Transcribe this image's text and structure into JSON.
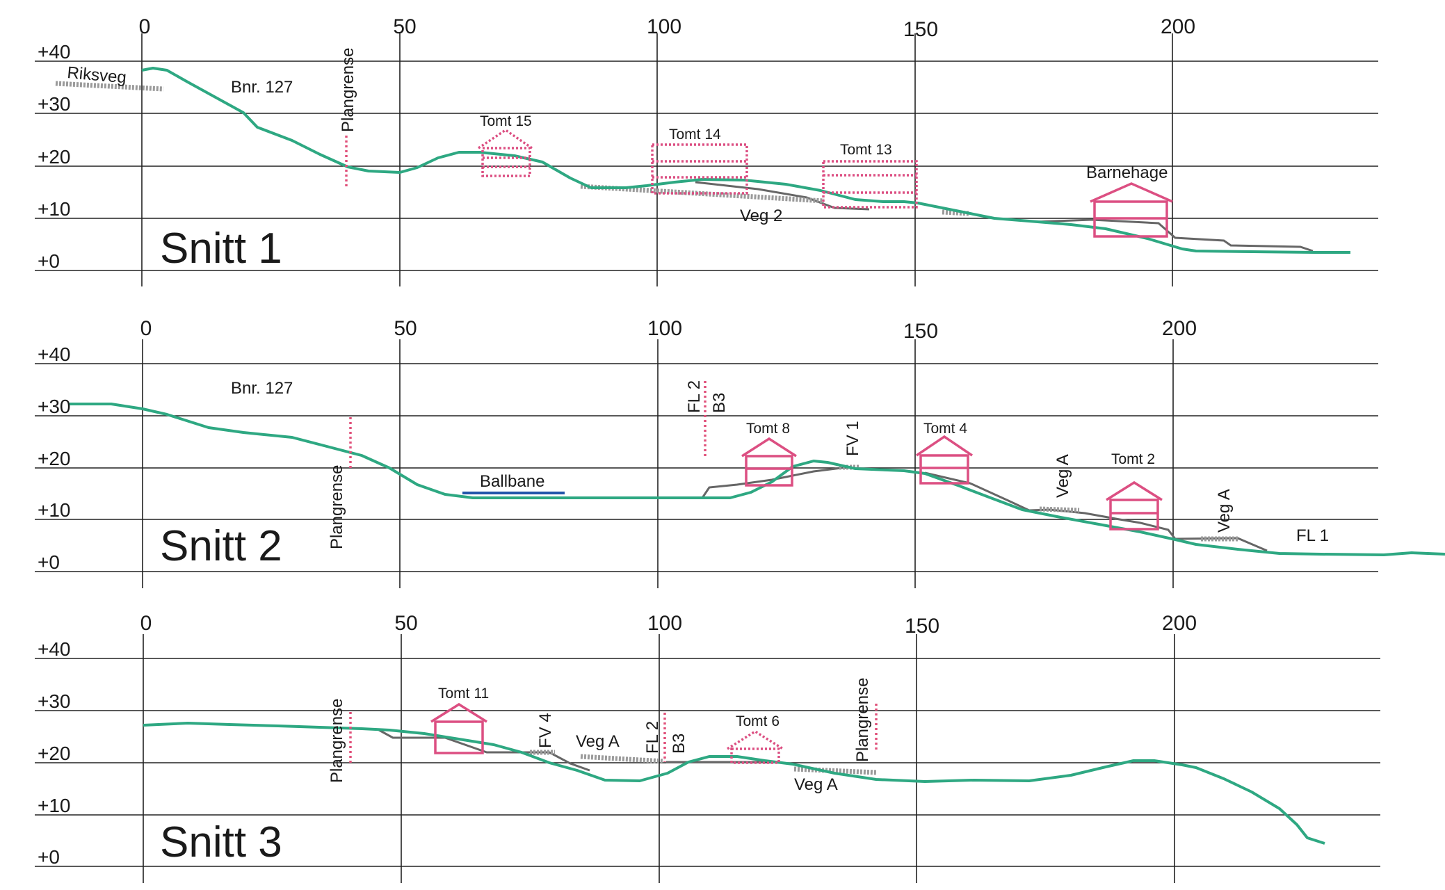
{
  "axis": {
    "x_ticks": [
      "0",
      "50",
      "100",
      "150",
      "200"
    ],
    "elevation_ticks": [
      "+40",
      "+30",
      "+20",
      "+10",
      "+0"
    ]
  },
  "colors": {
    "terrain": "#2ea882",
    "building": "#dc4f82",
    "boundary": "#e0507a",
    "road": "#666666",
    "ballbane": "#2255aa"
  },
  "sections": [
    {
      "title": "Snitt 1",
      "labels": {
        "riksveg": "Riksveg",
        "bnr": "Bnr. 127",
        "plangrense": "Plangrense",
        "tomt15": "Tomt 15",
        "tomt14": "Tomt 14",
        "tomt13": "Tomt 13",
        "barnehage": "Barnehage",
        "veg2": "Veg 2"
      }
    },
    {
      "title": "Snitt 2",
      "labels": {
        "bnr": "Bnr. 127",
        "plangrense": "Plangrense",
        "ballbane": "Ballbane",
        "fl2": "FL 2",
        "b3": "B3",
        "tomt8": "Tomt 8",
        "fv1": "FV 1",
        "tomt4": "Tomt 4",
        "vega1": "Veg A",
        "tomt2": "Tomt 2",
        "vega2": "Veg A",
        "fl1": "FL 1"
      }
    },
    {
      "title": "Snitt 3",
      "labels": {
        "plangrense1": "Plangrense",
        "tomt11": "Tomt 11",
        "fv4": "FV 4",
        "vega1": "Veg A",
        "fl2": "FL 2",
        "b3": "B3",
        "tomt6": "Tomt 6",
        "plangrense2": "Plangrense",
        "vega2": "Veg A"
      }
    }
  ]
}
